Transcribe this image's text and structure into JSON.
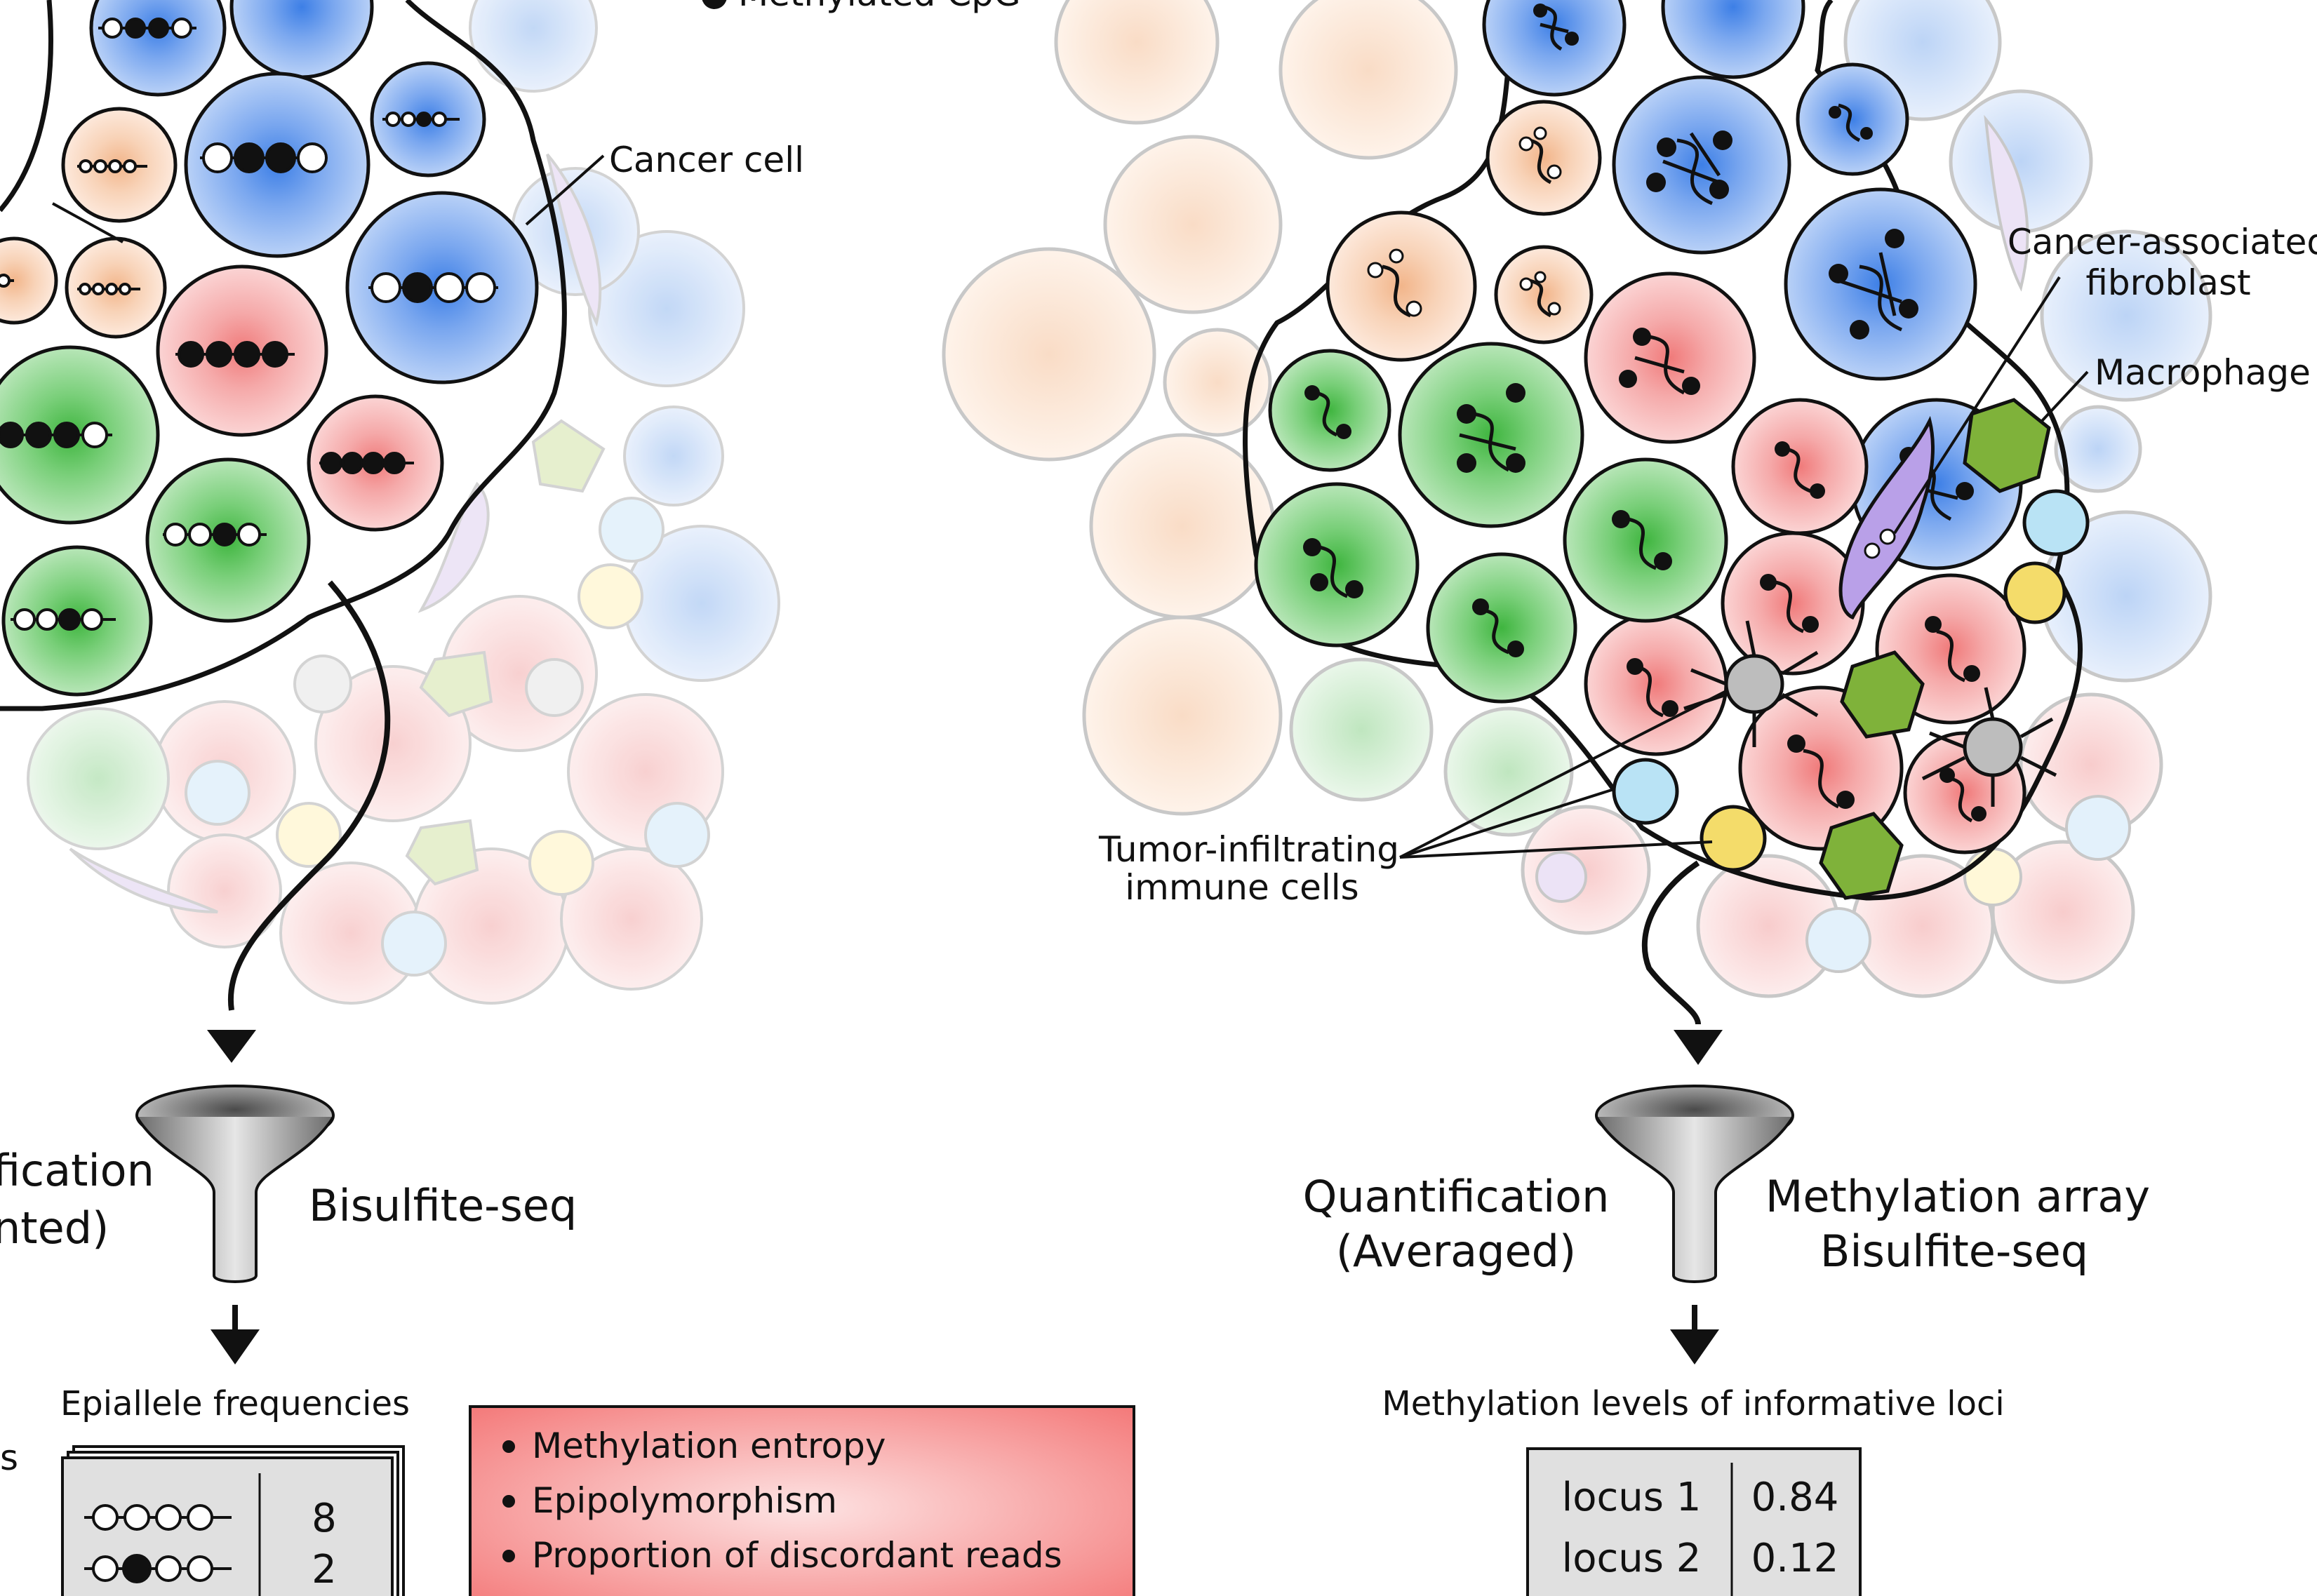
{
  "left_panel": {
    "top_legend_partial": "Methylated CpG",
    "cancer_cell_label": "Cancer cell",
    "method_label": "Bisulfite-seq",
    "quantification_label_partial_line1": "fication",
    "quantification_label_partial_line2": "nted)",
    "epiallele_title": "Epiallele frequencies",
    "epiallele_rows": [
      {
        "pattern": "oooo",
        "count": "8"
      },
      {
        "pattern": "o●oo",
        "count": "2"
      }
    ],
    "side_label_partial": "s",
    "metrics_box": {
      "items": [
        "Methylation entropy",
        "Epipolymorphism",
        "Proportion of discordant reads"
      ]
    }
  },
  "right_panel": {
    "caf_label_line1": "Cancer-associated",
    "caf_label_line2": "fibroblast",
    "macrophage_label": "Macrophage",
    "immune_label_line1": "Tumor-infiltrating",
    "immune_label_line2": "immune cells",
    "quantification_line1": "Quantification",
    "quantification_line2": "(Averaged)",
    "method_line1": "Methylation array",
    "method_line2": "Bisulfite-seq",
    "loci_title": "Methylation levels of informative loci",
    "loci_table": [
      {
        "locus": "locus 1",
        "value": "0.84"
      },
      {
        "locus": "locus 2",
        "value": "0.12"
      }
    ]
  },
  "colors": {
    "blue_cell": "#8fb5ee",
    "green_cell": "#6fcb6f",
    "pink_cell": "#f3a3a3",
    "orange_cell": "#f6c9a6",
    "outline": "#111111",
    "metrics_box": "#f47a7a"
  }
}
